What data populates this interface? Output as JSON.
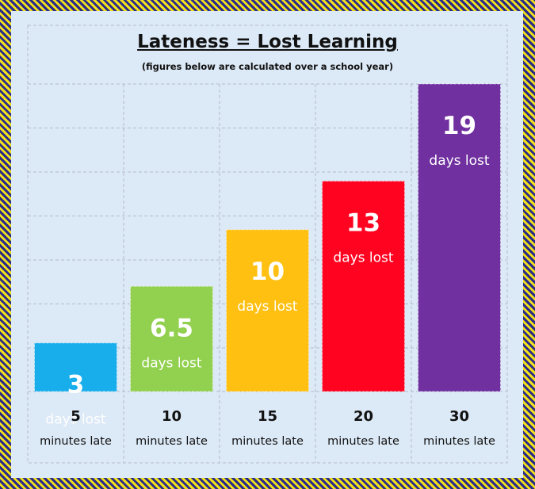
{
  "chart_data": {
    "type": "bar",
    "title": "Lateness = Lost Learning",
    "subtitle": "(figures below are calculated over a school year)",
    "categories": [
      "5",
      "10",
      "15",
      "20",
      "30"
    ],
    "category_unit": "minutes late",
    "values": [
      3,
      6.5,
      10,
      13,
      19
    ],
    "value_labels": [
      "3",
      "6.5",
      "10",
      "13",
      "19"
    ],
    "value_unit": "days lost",
    "ylim": [
      0,
      21
    ],
    "grid": true,
    "colors": [
      "#18aeec",
      "#92d050",
      "#ffc012",
      "#ff0320",
      "#7030a0"
    ]
  }
}
